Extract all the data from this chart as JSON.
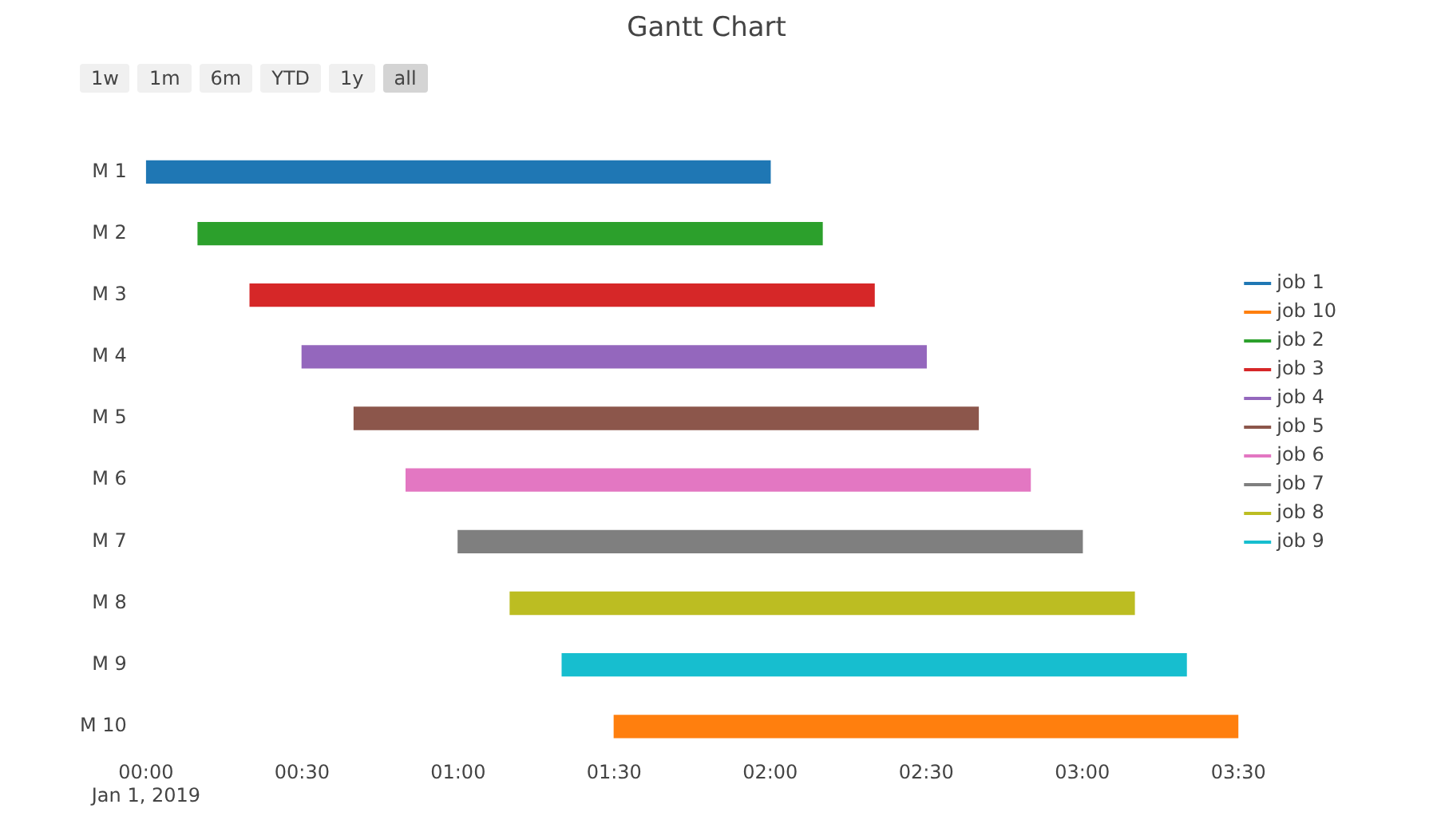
{
  "chart_data": {
    "type": "bar",
    "orientation": "horizontal",
    "title": "Gantt Chart",
    "categories": [
      "M 1",
      "M 2",
      "M 3",
      "M 4",
      "M 5",
      "M 6",
      "M 7",
      "M 8",
      "M 9",
      "M 10"
    ],
    "series": [
      {
        "name": "job 1",
        "color": "#1f77b4",
        "base": [
          0,
          null,
          null,
          null,
          null,
          null,
          null,
          null,
          null,
          null
        ],
        "values": [
          2,
          null,
          null,
          null,
          null,
          null,
          null,
          null,
          null,
          null
        ]
      },
      {
        "name": "job 10",
        "color": "#ff7f0e",
        "base": [
          null,
          null,
          null,
          null,
          null,
          null,
          null,
          null,
          null,
          1.5
        ],
        "values": [
          null,
          null,
          null,
          null,
          null,
          null,
          null,
          null,
          null,
          2
        ]
      },
      {
        "name": "job 2",
        "color": "#2ca02c",
        "base": [
          null,
          0.1667,
          null,
          null,
          null,
          null,
          null,
          null,
          null,
          null
        ],
        "values": [
          null,
          2,
          null,
          null,
          null,
          null,
          null,
          null,
          null,
          null
        ]
      },
      {
        "name": "job 3",
        "color": "#d62728",
        "base": [
          null,
          null,
          0.3333,
          null,
          null,
          null,
          null,
          null,
          null,
          null
        ],
        "values": [
          null,
          null,
          2,
          null,
          null,
          null,
          null,
          null,
          null,
          null
        ]
      },
      {
        "name": "job 4",
        "color": "#9467bd",
        "base": [
          null,
          null,
          null,
          0.5,
          null,
          null,
          null,
          null,
          null,
          null
        ],
        "values": [
          null,
          null,
          null,
          2,
          null,
          null,
          null,
          null,
          null,
          null
        ]
      },
      {
        "name": "job 5",
        "color": "#8c564b",
        "base": [
          null,
          null,
          null,
          null,
          0.6667,
          null,
          null,
          null,
          null,
          null
        ],
        "values": [
          null,
          null,
          null,
          null,
          2,
          null,
          null,
          null,
          null,
          null
        ]
      },
      {
        "name": "job 6",
        "color": "#e377c2",
        "base": [
          null,
          null,
          null,
          null,
          null,
          0.8333,
          null,
          null,
          null,
          null
        ],
        "values": [
          null,
          null,
          null,
          null,
          null,
          2,
          null,
          null,
          null,
          null
        ]
      },
      {
        "name": "job 7",
        "color": "#7f7f7f",
        "base": [
          null,
          null,
          null,
          null,
          null,
          null,
          1,
          null,
          null,
          null
        ],
        "values": [
          null,
          null,
          null,
          null,
          null,
          null,
          2,
          null,
          null,
          null
        ]
      },
      {
        "name": "job 8",
        "color": "#bcbd22",
        "base": [
          null,
          null,
          null,
          null,
          null,
          null,
          null,
          1.1667,
          null,
          null
        ],
        "values": [
          null,
          null,
          null,
          null,
          null,
          null,
          null,
          2,
          null,
          null
        ]
      },
      {
        "name": "job 9",
        "color": "#17becf",
        "base": [
          null,
          null,
          null,
          null,
          null,
          null,
          null,
          null,
          1.3333,
          null
        ],
        "values": [
          null,
          null,
          null,
          null,
          null,
          null,
          null,
          null,
          2,
          null
        ]
      }
    ],
    "xlim": [
      0,
      3.5
    ],
    "xticks": [
      {
        "value": 0,
        "label": "00:00\nJan 1, 2019"
      },
      {
        "value": 0.5,
        "label": "00:30"
      },
      {
        "value": 1,
        "label": "01:00"
      },
      {
        "value": 1.5,
        "label": "01:30"
      },
      {
        "value": 2,
        "label": "02:00"
      },
      {
        "value": 2.5,
        "label": "02:30"
      },
      {
        "value": 3,
        "label": "03:00"
      },
      {
        "value": 3.5,
        "label": "03:30"
      }
    ],
    "annotations": [
      "1w",
      "1m",
      "6m",
      "YTD",
      "1y",
      "all"
    ],
    "legend": "right",
    "grid": false
  }
}
